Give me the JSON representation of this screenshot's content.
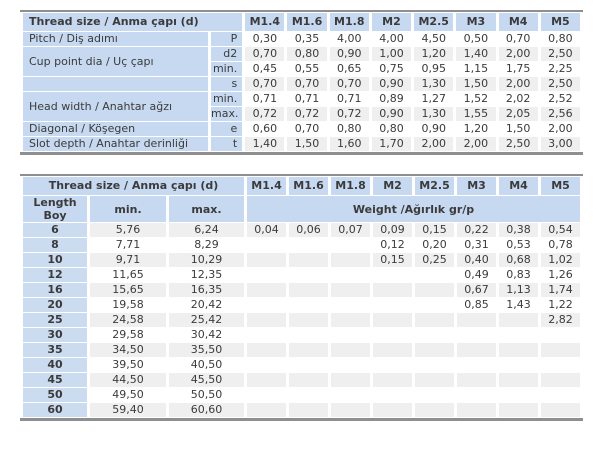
{
  "colors": {
    "header_bg": "#c6d9f0",
    "length_col_bg": "#cbdcf1",
    "stripe_bg": "#efefef",
    "row_bg": "#ffffff",
    "border": "#8f8f8f",
    "text": "#3b3b3b"
  },
  "top_table": {
    "header_label": "Thread size / Anma çapı (d)",
    "sizes": [
      "M1.4",
      "M1.6",
      "M1.8",
      "M2",
      "M2.5",
      "M3",
      "M4",
      "M5"
    ],
    "rows": [
      {
        "label": "Pitch / Diş adımı",
        "rowspan": 1,
        "symbol": "P",
        "values": [
          "0,30",
          "0,35",
          "4,00",
          "4,00",
          "4,50",
          "0,50",
          "0,70",
          "0,80"
        ]
      },
      {
        "label": "Cup point dia / Uç çapı",
        "rowspan": 2,
        "symbol": "d2",
        "values": [
          "0,70",
          "0,80",
          "0,90",
          "1,00",
          "1,20",
          "1,40",
          "2,00",
          "2,50"
        ]
      },
      {
        "symbol": "min.",
        "values": [
          "0,45",
          "0,55",
          "0,65",
          "0,75",
          "0,95",
          "1,15",
          "1,75",
          "2,25"
        ]
      },
      {
        "label": "",
        "rowspan": 1,
        "symbol": "s",
        "values": [
          "0,70",
          "0,70",
          "0,70",
          "0,90",
          "1,30",
          "1,50",
          "2,00",
          "2,50"
        ]
      },
      {
        "label": "Head width / Anahtar ağzı",
        "rowspan": 2,
        "symbol": "min.",
        "values": [
          "0,71",
          "0,71",
          "0,71",
          "0,89",
          "1,27",
          "1,52",
          "2,02",
          "2,52"
        ]
      },
      {
        "symbol": "max.",
        "values": [
          "0,72",
          "0,72",
          "0,72",
          "0,90",
          "1,30",
          "1,55",
          "2,05",
          "2,56"
        ]
      },
      {
        "label": "Diagonal / Köşegen",
        "rowspan": 1,
        "symbol": "e",
        "values": [
          "0,60",
          "0,70",
          "0,80",
          "0,80",
          "0,90",
          "1,20",
          "1,50",
          "2,00"
        ]
      },
      {
        "label": "Slot depth / Anahtar derinliği",
        "rowspan": 1,
        "symbol": "t",
        "values": [
          "1,40",
          "1,50",
          "1,60",
          "1,70",
          "2,00",
          "2,00",
          "2,50",
          "3,00"
        ]
      }
    ]
  },
  "bottom_table": {
    "header_label": "Thread size / Anma çapı (d)",
    "sizes": [
      "M1.4",
      "M1.6",
      "M1.8",
      "M2",
      "M2.5",
      "M3",
      "M4",
      "M5"
    ],
    "length_label_line1": "Length",
    "length_label_line2": "Boy",
    "min_label": "min.",
    "max_label": "max.",
    "weight_label": "Weight /Ağırlık gr/p",
    "rows": [
      {
        "length": "6",
        "min": "5,76",
        "max": "6,24",
        "weights": [
          "0,04",
          "0,06",
          "0,07",
          "0,09",
          "0,15",
          "0,22",
          "0,38",
          "0,54"
        ]
      },
      {
        "length": "8",
        "min": "7,71",
        "max": "8,29",
        "weights": [
          "",
          "",
          "",
          "0,12",
          "0,20",
          "0,31",
          "0,53",
          "0,78"
        ]
      },
      {
        "length": "10",
        "min": "9,71",
        "max": "10,29",
        "weights": [
          "",
          "",
          "",
          "0,15",
          "0,25",
          "0,40",
          "0,68",
          "1,02"
        ]
      },
      {
        "length": "12",
        "min": "11,65",
        "max": "12,35",
        "weights": [
          "",
          "",
          "",
          "",
          "",
          "0,49",
          "0,83",
          "1,26"
        ]
      },
      {
        "length": "16",
        "min": "15,65",
        "max": "16,35",
        "weights": [
          "",
          "",
          "",
          "",
          "",
          "0,67",
          "1,13",
          "1,74"
        ]
      },
      {
        "length": "20",
        "min": "19,58",
        "max": "20,42",
        "weights": [
          "",
          "",
          "",
          "",
          "",
          "0,85",
          "1,43",
          "1,22"
        ]
      },
      {
        "length": "25",
        "min": "24,58",
        "max": "25,42",
        "weights": [
          "",
          "",
          "",
          "",
          "",
          "",
          "",
          "2,82"
        ]
      },
      {
        "length": "30",
        "min": "29,58",
        "max": "30,42",
        "weights": [
          "",
          "",
          "",
          "",
          "",
          "",
          "",
          ""
        ]
      },
      {
        "length": "35",
        "min": "34,50",
        "max": "35,50",
        "weights": [
          "",
          "",
          "",
          "",
          "",
          "",
          "",
          ""
        ]
      },
      {
        "length": "40",
        "min": "39,50",
        "max": "40,50",
        "weights": [
          "",
          "",
          "",
          "",
          "",
          "",
          "",
          ""
        ]
      },
      {
        "length": "45",
        "min": "44,50",
        "max": "45,50",
        "weights": [
          "",
          "",
          "",
          "",
          "",
          "",
          "",
          ""
        ]
      },
      {
        "length": "50",
        "min": "49,50",
        "max": "50,50",
        "weights": [
          "",
          "",
          "",
          "",
          "",
          "",
          "",
          ""
        ]
      },
      {
        "length": "60",
        "min": "59,40",
        "max": "60,60",
        "weights": [
          "",
          "",
          "",
          "",
          "",
          "",
          "",
          ""
        ]
      }
    ]
  }
}
